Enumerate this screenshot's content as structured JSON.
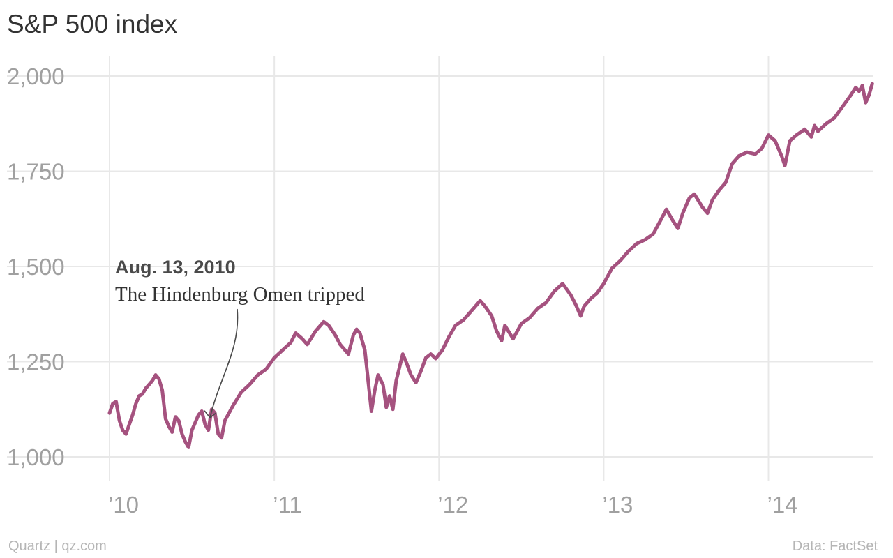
{
  "title": "S&P 500 index",
  "footer": {
    "source_left": "Quartz | qz.com",
    "source_right": "Data: FactSet"
  },
  "colors": {
    "line": "#a5527f",
    "grid": "#e8e8e8",
    "tick_text": "#a0a0a0"
  },
  "chart_data": {
    "type": "line",
    "title": "S&P 500 index",
    "xlabel": "",
    "ylabel": "",
    "xlim": [
      2010.0,
      2014.65
    ],
    "ylim": [
      1000,
      2000
    ],
    "grid": true,
    "y_ticks": [
      {
        "value": 1000,
        "label": "1,000"
      },
      {
        "value": 1250,
        "label": "1,250"
      },
      {
        "value": 1500,
        "label": "1,500"
      },
      {
        "value": 1750,
        "label": "1,750"
      },
      {
        "value": 2000,
        "label": "2,000"
      }
    ],
    "x_ticks": [
      {
        "value": 2010,
        "label": "’10"
      },
      {
        "value": 2011,
        "label": "’11"
      },
      {
        "value": 2012,
        "label": "’12"
      },
      {
        "value": 2013,
        "label": "’13"
      },
      {
        "value": 2014,
        "label": "’14"
      }
    ],
    "series": [
      {
        "x": [
          2010.0,
          2010.02,
          2010.04,
          2010.06,
          2010.08,
          2010.1,
          2010.12,
          2010.14,
          2010.16,
          2010.18,
          2010.2,
          2010.22,
          2010.24,
          2010.26,
          2010.28,
          2010.3,
          2010.32,
          2010.34,
          2010.36,
          2010.38,
          2010.4,
          2010.42,
          2010.44,
          2010.46,
          2010.48,
          2010.5,
          2010.52,
          2010.54,
          2010.56,
          2010.58,
          2010.6,
          2010.62,
          2010.64,
          2010.66,
          2010.68,
          2010.7,
          2010.75,
          2010.8,
          2010.85,
          2010.9,
          2010.95,
          2011.0,
          2011.05,
          2011.1,
          2011.13,
          2011.17,
          2011.2,
          2011.25,
          2011.3,
          2011.33,
          2011.37,
          2011.4,
          2011.45,
          2011.48,
          2011.5,
          2011.52,
          2011.55,
          2011.57,
          2011.59,
          2011.61,
          2011.63,
          2011.66,
          2011.68,
          2011.7,
          2011.72,
          2011.74,
          2011.76,
          2011.78,
          2011.8,
          2011.83,
          2011.86,
          2011.89,
          2011.92,
          2011.95,
          2011.98,
          2012.02,
          2012.06,
          2012.1,
          2012.15,
          2012.2,
          2012.25,
          2012.28,
          2012.32,
          2012.35,
          2012.38,
          2012.4,
          2012.45,
          2012.5,
          2012.55,
          2012.6,
          2012.65,
          2012.7,
          2012.75,
          2012.8,
          2012.83,
          2012.86,
          2012.88,
          2012.92,
          2012.96,
          2013.0,
          2013.05,
          2013.1,
          2013.15,
          2013.2,
          2013.25,
          2013.3,
          2013.35,
          2013.38,
          2013.42,
          2013.45,
          2013.48,
          2013.52,
          2013.55,
          2013.6,
          2013.63,
          2013.66,
          2013.7,
          2013.74,
          2013.78,
          2013.82,
          2013.87,
          2013.92,
          2013.96,
          2014.0,
          2014.04,
          2014.08,
          2014.1,
          2014.13,
          2014.17,
          2014.22,
          2014.26,
          2014.28,
          2014.3,
          2014.35,
          2014.4,
          2014.45,
          2014.5,
          2014.53,
          2014.55,
          2014.57,
          2014.59,
          2014.61,
          2014.63
        ],
        "values": [
          1115,
          1140,
          1145,
          1095,
          1070,
          1060,
          1085,
          1110,
          1140,
          1160,
          1165,
          1180,
          1190,
          1200,
          1215,
          1205,
          1175,
          1100,
          1080,
          1065,
          1105,
          1095,
          1060,
          1040,
          1025,
          1070,
          1090,
          1110,
          1120,
          1085,
          1070,
          1125,
          1115,
          1060,
          1050,
          1095,
          1135,
          1170,
          1190,
          1215,
          1230,
          1260,
          1280,
          1300,
          1325,
          1310,
          1295,
          1330,
          1355,
          1345,
          1320,
          1295,
          1270,
          1320,
          1335,
          1325,
          1280,
          1200,
          1120,
          1175,
          1215,
          1190,
          1130,
          1160,
          1125,
          1200,
          1235,
          1270,
          1250,
          1215,
          1195,
          1225,
          1260,
          1270,
          1258,
          1280,
          1315,
          1345,
          1360,
          1385,
          1410,
          1395,
          1370,
          1330,
          1305,
          1345,
          1310,
          1350,
          1365,
          1390,
          1405,
          1435,
          1455,
          1425,
          1400,
          1370,
          1395,
          1415,
          1430,
          1455,
          1495,
          1515,
          1540,
          1560,
          1570,
          1585,
          1625,
          1650,
          1620,
          1600,
          1640,
          1680,
          1690,
          1655,
          1640,
          1675,
          1700,
          1720,
          1770,
          1790,
          1800,
          1795,
          1810,
          1845,
          1830,
          1790,
          1765,
          1830,
          1845,
          1860,
          1840,
          1870,
          1855,
          1875,
          1890,
          1920,
          1950,
          1970,
          1960,
          1975,
          1930,
          1950,
          1980
        ]
      }
    ],
    "annotations": [
      {
        "x": 2010.61,
        "y": 1125,
        "date": "Aug. 13, 2010",
        "text": "The Hindenburg Omen tripped"
      }
    ]
  }
}
